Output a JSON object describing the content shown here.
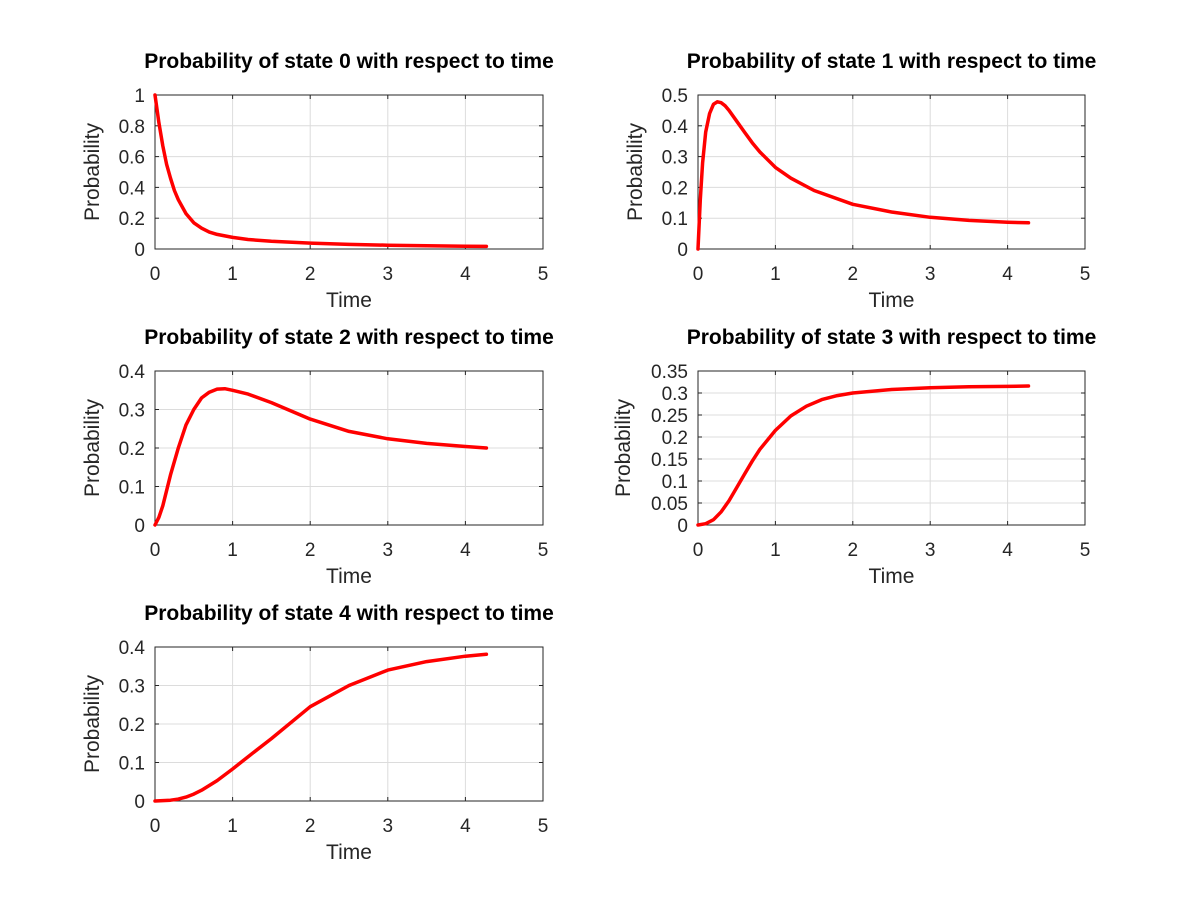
{
  "figure": {
    "background": "#ffffff",
    "line_color": "#ff0000"
  },
  "chart_data": [
    {
      "type": "line",
      "title": "Probability of state 0 with respect to time",
      "xlabel": "Time",
      "ylabel": "Probability",
      "xlim": [
        0,
        5
      ],
      "ylim": [
        0,
        1
      ],
      "xticks": [
        "0",
        "1",
        "2",
        "3",
        "4",
        "5"
      ],
      "yticks": [
        "0",
        "0.2",
        "0.4",
        "0.6",
        "0.8",
        "1"
      ],
      "grid": true,
      "series": [
        {
          "x": [
            0,
            0.05,
            0.1,
            0.15,
            0.2,
            0.25,
            0.3,
            0.4,
            0.5,
            0.6,
            0.7,
            0.8,
            1.0,
            1.2,
            1.5,
            2.0,
            2.5,
            3.0,
            3.5,
            4.0,
            4.27
          ],
          "y": [
            1.0,
            0.82,
            0.67,
            0.55,
            0.46,
            0.38,
            0.32,
            0.23,
            0.17,
            0.135,
            0.11,
            0.095,
            0.075,
            0.062,
            0.05,
            0.038,
            0.03,
            0.025,
            0.021,
            0.018,
            0.017
          ]
        }
      ]
    },
    {
      "type": "line",
      "title": "Probability of state 1 with respect to time",
      "xlabel": "Time",
      "ylabel": "Probability",
      "xlim": [
        0,
        5
      ],
      "ylim": [
        0,
        0.5
      ],
      "xticks": [
        "0",
        "1",
        "2",
        "3",
        "4",
        "5"
      ],
      "yticks": [
        "0",
        "0.1",
        "0.2",
        "0.3",
        "0.4",
        "0.5"
      ],
      "grid": true,
      "series": [
        {
          "x": [
            0,
            0.03,
            0.06,
            0.1,
            0.15,
            0.2,
            0.25,
            0.3,
            0.35,
            0.4,
            0.5,
            0.6,
            0.7,
            0.8,
            1.0,
            1.2,
            1.5,
            2.0,
            2.5,
            3.0,
            3.5,
            4.0,
            4.27
          ],
          "y": [
            0,
            0.16,
            0.28,
            0.38,
            0.44,
            0.47,
            0.478,
            0.475,
            0.465,
            0.45,
            0.415,
            0.38,
            0.345,
            0.315,
            0.265,
            0.23,
            0.19,
            0.145,
            0.12,
            0.103,
            0.093,
            0.087,
            0.085
          ]
        }
      ]
    },
    {
      "type": "line",
      "title": "Probability of state 2 with respect to time",
      "xlabel": "Time",
      "ylabel": "Probability",
      "xlim": [
        0,
        5
      ],
      "ylim": [
        0,
        0.4
      ],
      "xticks": [
        "0",
        "1",
        "2",
        "3",
        "4",
        "5"
      ],
      "yticks": [
        "0",
        "0.1",
        "0.2",
        "0.3",
        "0.4"
      ],
      "grid": true,
      "series": [
        {
          "x": [
            0,
            0.05,
            0.1,
            0.2,
            0.3,
            0.4,
            0.5,
            0.6,
            0.7,
            0.8,
            0.9,
            1.0,
            1.2,
            1.5,
            2.0,
            2.5,
            3.0,
            3.5,
            4.0,
            4.27
          ],
          "y": [
            0,
            0.02,
            0.05,
            0.13,
            0.2,
            0.26,
            0.3,
            0.33,
            0.345,
            0.353,
            0.354,
            0.35,
            0.34,
            0.318,
            0.275,
            0.243,
            0.224,
            0.212,
            0.204,
            0.2
          ]
        }
      ]
    },
    {
      "type": "line",
      "title": "Probability of state 3 with respect to time",
      "xlabel": "Time",
      "ylabel": "Probability",
      "xlim": [
        0,
        5
      ],
      "ylim": [
        0,
        0.35
      ],
      "xticks": [
        "0",
        "1",
        "2",
        "3",
        "4",
        "5"
      ],
      "yticks": [
        "0",
        "0.05",
        "0.1",
        "0.15",
        "0.2",
        "0.25",
        "0.3",
        "0.35"
      ],
      "grid": true,
      "series": [
        {
          "x": [
            0,
            0.1,
            0.2,
            0.3,
            0.4,
            0.5,
            0.6,
            0.7,
            0.8,
            1.0,
            1.2,
            1.4,
            1.6,
            1.8,
            2.0,
            2.5,
            3.0,
            3.5,
            4.0,
            4.27
          ],
          "y": [
            0,
            0.003,
            0.012,
            0.03,
            0.055,
            0.085,
            0.115,
            0.145,
            0.172,
            0.215,
            0.248,
            0.27,
            0.285,
            0.294,
            0.3,
            0.308,
            0.312,
            0.314,
            0.315,
            0.316
          ]
        }
      ]
    },
    {
      "type": "line",
      "title": "Probability of state 4 with respect to time",
      "xlabel": "Time",
      "ylabel": "Probability",
      "xlim": [
        0,
        5
      ],
      "ylim": [
        0,
        0.4
      ],
      "xticks": [
        "0",
        "1",
        "2",
        "3",
        "4",
        "5"
      ],
      "yticks": [
        "0",
        "0.1",
        "0.2",
        "0.3",
        "0.4"
      ],
      "grid": true,
      "series": [
        {
          "x": [
            0,
            0.2,
            0.3,
            0.4,
            0.5,
            0.6,
            0.8,
            1.0,
            1.2,
            1.5,
            2.0,
            2.5,
            3.0,
            3.5,
            4.0,
            4.27
          ],
          "y": [
            0,
            0.002,
            0.005,
            0.01,
            0.018,
            0.028,
            0.053,
            0.083,
            0.115,
            0.162,
            0.245,
            0.3,
            0.34,
            0.362,
            0.376,
            0.381
          ]
        }
      ]
    }
  ]
}
